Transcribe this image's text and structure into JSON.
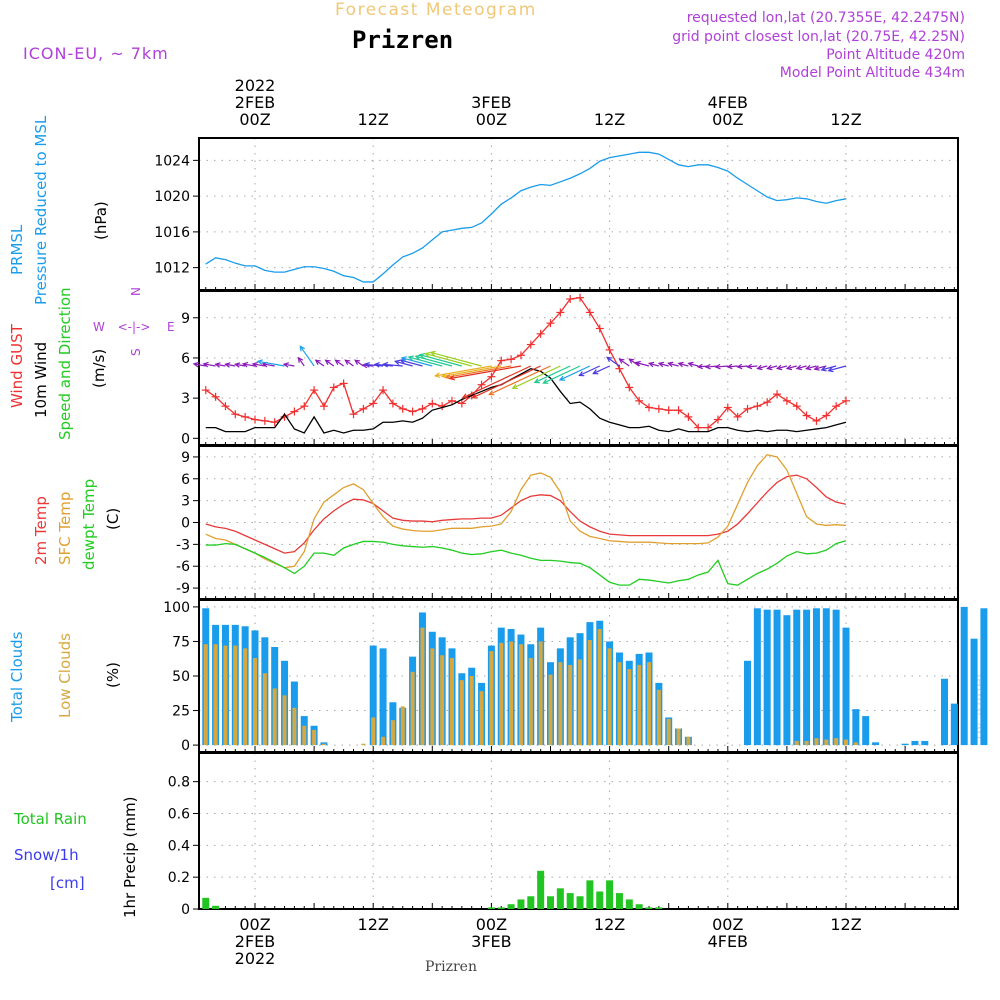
{
  "header": {
    "forecast_title": "Forecast Meteogram",
    "location": "Prizren",
    "model": "ICON-EU, ~ 7km",
    "requested": "requested lon,lat (20.7355E, 42.2475N)",
    "grid_point": "grid point closest lon,lat (20.75E, 42.25N)",
    "point_altitude": "Point Altitude 420m",
    "model_altitude": "Model Point Altitude 434m",
    "footer_location": "Prizren",
    "watermark": "by Angel"
  },
  "colors": {
    "title": "#f0c878",
    "purple": "#b040d8",
    "pressure": "#1a9cec",
    "gust": "#f03030",
    "wind": "#000000",
    "temp2m": "#e83a3a",
    "sfc": "#e0a030",
    "dewpt": "#22cc22",
    "total_clouds": "#1a9cec",
    "low_clouds": "#d8a840",
    "rain": "#22c422",
    "snow": "#3a3af0"
  },
  "time_axis": {
    "top": [
      {
        "h": 0,
        "lines": [
          "2022",
          "2FEB",
          "00Z"
        ]
      },
      {
        "h": 12,
        "lines": [
          "12Z"
        ]
      },
      {
        "h": 24,
        "lines": [
          "3FEB",
          "00Z"
        ]
      },
      {
        "h": 36,
        "lines": [
          "12Z"
        ]
      },
      {
        "h": 48,
        "lines": [
          "4FEB",
          "00Z"
        ]
      },
      {
        "h": 60,
        "lines": [
          "12Z"
        ]
      }
    ],
    "bottom": [
      {
        "h": 0,
        "lines": [
          "00Z",
          "2FEB",
          "2022"
        ]
      },
      {
        "h": 12,
        "lines": [
          "12Z"
        ]
      },
      {
        "h": 24,
        "lines": [
          "00Z",
          "3FEB"
        ]
      },
      {
        "h": 36,
        "lines": [
          "12Z"
        ]
      },
      {
        "h": 48,
        "lines": [
          "00Z",
          "4FEB"
        ]
      },
      {
        "h": 60,
        "lines": [
          "12Z"
        ]
      }
    ]
  },
  "panels": {
    "pressure": {
      "labels": [
        "PRMSL",
        "Pressure Reduced to MSL"
      ],
      "unit": "(hPa)",
      "yticks": [
        "1012",
        "1016",
        "1020",
        "1024"
      ]
    },
    "wind": {
      "labels": [
        "Wind GUST",
        "10m Wind",
        "Speed and Direction"
      ],
      "unit": "(m/s)",
      "compass": {
        "n": "N",
        "s": "S",
        "w": "W",
        "e": "E",
        "arrows": "<-|->"
      },
      "yticks": [
        "0",
        "3",
        "6",
        "9"
      ]
    },
    "temp": {
      "labels": [
        "2m Temp",
        "SFC Temp",
        "dewpt Temp"
      ],
      "unit": "(C)",
      "yticks": [
        "-9",
        "-6",
        "-3",
        "0",
        "3",
        "6",
        "9"
      ]
    },
    "clouds": {
      "labels": [
        "Total Clouds",
        "Low Clouds"
      ],
      "unit": "(%)",
      "yticks": [
        "0",
        "25",
        "50",
        "75",
        "100"
      ]
    },
    "precip": {
      "labels": [
        "Total Rain",
        "Snow/1h",
        "[cm]"
      ],
      "unit": "1hr Precip (mm)",
      "yticks": [
        "0",
        "0.2",
        "0.4",
        "0.6",
        "0.8"
      ]
    }
  },
  "chart_data": [
    {
      "type": "line",
      "title": "PRMSL Pressure Reduced to MSL",
      "ylabel": "hPa",
      "xlabel": "hours from 2FEB 00Z",
      "ylim": [
        1009.5,
        1026.5
      ],
      "x_start": -5,
      "x_step": 1,
      "series": [
        {
          "name": "PRMSL",
          "values": [
            1012.4,
            1013.1,
            1012.9,
            1012.5,
            1012.2,
            1012.2,
            1011.7,
            1011.5,
            1011.5,
            1011.8,
            1012.1,
            1012.1,
            1011.9,
            1011.6,
            1011.1,
            1010.9,
            1010.4,
            1010.4,
            1011.3,
            1012.3,
            1013.2,
            1013.6,
            1014.2,
            1015.1,
            1016.0,
            1016.2,
            1016.4,
            1016.5,
            1017.0,
            1018.0,
            1019.1,
            1019.8,
            1020.6,
            1021.0,
            1021.3,
            1021.2,
            1021.6,
            1022.0,
            1022.5,
            1023.1,
            1023.9,
            1024.3,
            1024.5,
            1024.7,
            1024.9,
            1024.9,
            1024.7,
            1024.1,
            1023.5,
            1023.3,
            1023.5,
            1023.5,
            1023.2,
            1022.8,
            1022.0,
            1021.3,
            1020.6,
            1019.9,
            1019.5,
            1019.6,
            1019.8,
            1019.7,
            1019.4,
            1019.2,
            1019.5,
            1019.7
          ]
        }
      ]
    },
    {
      "type": "line",
      "title": "Wind GUST, 10m Wind Speed and Direction",
      "ylabel": "m/s",
      "xlabel": "hours from 2FEB 00Z",
      "ylim": [
        -0.5,
        11
      ],
      "x_start": -5,
      "x_step": 1,
      "series": [
        {
          "name": "Wind GUST",
          "values": [
            3.6,
            3.1,
            2.4,
            1.8,
            1.6,
            1.4,
            1.3,
            1.2,
            1.6,
            2.0,
            2.4,
            3.6,
            2.4,
            3.8,
            4.1,
            1.8,
            2.2,
            2.6,
            3.6,
            2.6,
            2.2,
            2.0,
            2.2,
            2.6,
            2.4,
            2.8,
            2.6,
            3.2,
            4.0,
            4.6,
            5.8,
            5.9,
            6.2,
            7.0,
            7.8,
            8.6,
            9.4,
            10.4,
            10.5,
            9.4,
            8.2,
            6.6,
            5.2,
            3.8,
            2.8,
            2.3,
            2.2,
            2.1,
            2.1,
            1.6,
            0.8,
            0.8,
            1.4,
            2.3,
            1.6,
            2.2,
            2.4,
            2.7,
            3.3,
            2.8,
            2.4,
            1.7,
            1.3,
            1.7,
            2.4,
            2.8
          ]
        },
        {
          "name": "10m Wind",
          "values": [
            0.8,
            0.8,
            0.5,
            0.5,
            0.5,
            0.8,
            0.8,
            0.8,
            1.8,
            0.7,
            0.4,
            1.6,
            0.4,
            0.6,
            0.4,
            0.6,
            0.6,
            0.7,
            1.2,
            1.2,
            1.3,
            1.2,
            1.5,
            2.1,
            2.3,
            2.5,
            2.9,
            3.2,
            3.5,
            3.8,
            4.0,
            4.4,
            4.8,
            5.2,
            5.0,
            4.5,
            3.5,
            2.6,
            2.7,
            2.2,
            1.5,
            1.2,
            1.0,
            0.8,
            0.8,
            0.9,
            0.6,
            0.5,
            0.7,
            0.5,
            0.5,
            0.5,
            0.8,
            0.8,
            0.6,
            0.5,
            0.6,
            0.5,
            0.6,
            0.6,
            0.5,
            0.6,
            0.7,
            0.8,
            1.0,
            1.2
          ]
        }
      ]
    },
    {
      "type": "line",
      "title": "2m Temp, SFC Temp, dewpt Temp",
      "ylabel": "C",
      "xlabel": "hours from 2FEB 00Z",
      "ylim": [
        -10.5,
        10.5
      ],
      "x_start": -5,
      "x_step": 1,
      "series": [
        {
          "name": "2m Temp",
          "values": [
            -0.2,
            -0.6,
            -0.8,
            -1.2,
            -1.8,
            -2.4,
            -3.0,
            -3.6,
            -4.2,
            -4.0,
            -2.8,
            -1.0,
            0.5,
            1.6,
            2.5,
            3.2,
            3.1,
            2.6,
            1.6,
            0.6,
            0.3,
            0.2,
            0.2,
            0.1,
            0.3,
            0.4,
            0.5,
            0.5,
            0.6,
            0.6,
            1.0,
            2.0,
            3.0,
            3.6,
            3.8,
            3.7,
            3.0,
            1.5,
            0.2,
            -0.6,
            -1.2,
            -1.6,
            -1.7,
            -1.8,
            -1.8,
            -1.8,
            -1.8,
            -1.8,
            -1.8,
            -1.8,
            -1.8,
            -1.8,
            -1.6,
            -1.2,
            -0.2,
            1.2,
            2.7,
            4.2,
            5.5,
            6.3,
            6.5,
            6.0,
            4.8,
            3.5,
            2.8,
            2.5
          ]
        },
        {
          "name": "SFC Temp",
          "values": [
            -1.6,
            -2.2,
            -2.4,
            -3.0,
            -3.6,
            -4.2,
            -5.0,
            -5.6,
            -6.2,
            -6.0,
            -4.0,
            0.5,
            2.8,
            3.8,
            4.8,
            5.3,
            4.5,
            2.6,
            0.8,
            -0.5,
            -0.9,
            -1.1,
            -1.2,
            -1.2,
            -1.0,
            -0.8,
            -0.8,
            -0.8,
            -0.6,
            -0.5,
            -0.2,
            1.5,
            4.5,
            6.5,
            6.8,
            6.2,
            4.2,
            0.2,
            -1.2,
            -1.9,
            -2.2,
            -2.5,
            -2.6,
            -2.7,
            -2.7,
            -2.7,
            -2.8,
            -2.9,
            -2.9,
            -2.9,
            -2.9,
            -2.8,
            -2.0,
            -0.5,
            2.5,
            5.5,
            7.8,
            9.3,
            9.0,
            7.2,
            4.0,
            0.8,
            -0.2,
            -0.4,
            -0.3,
            -0.4
          ]
        },
        {
          "name": "dewpt Temp",
          "values": [
            -3.1,
            -3.1,
            -2.9,
            -3.0,
            -3.6,
            -4.2,
            -4.8,
            -5.5,
            -6.2,
            -7.0,
            -6.0,
            -4.2,
            -4.2,
            -4.5,
            -3.5,
            -3.0,
            -2.6,
            -2.6,
            -2.7,
            -3.0,
            -3.2,
            -3.3,
            -3.4,
            -3.3,
            -3.5,
            -3.8,
            -4.2,
            -4.4,
            -4.3,
            -4.0,
            -3.8,
            -4.2,
            -4.5,
            -4.9,
            -5.2,
            -5.2,
            -5.3,
            -5.5,
            -5.6,
            -6.2,
            -7.2,
            -8.2,
            -8.6,
            -8.6,
            -7.8,
            -7.9,
            -8.1,
            -8.3,
            -8.0,
            -7.8,
            -7.2,
            -6.8,
            -5.2,
            -8.4,
            -8.6,
            -7.8,
            -7.0,
            -6.4,
            -5.6,
            -4.6,
            -4.0,
            -4.3,
            -4.2,
            -3.8,
            -2.9,
            -2.5
          ]
        }
      ]
    },
    {
      "type": "bar",
      "title": "Total Clouds, Low Clouds",
      "ylabel": "%",
      "xlabel": "hours from 2FEB 00Z",
      "ylim": [
        -5,
        105
      ],
      "x_start": -5,
      "x_step": 1,
      "series": [
        {
          "name": "Total Clouds",
          "values": [
            99,
            87,
            87,
            87,
            86,
            83,
            78,
            71,
            61,
            46,
            21,
            14,
            2,
            0,
            0,
            0,
            0,
            72,
            70,
            31,
            27,
            64,
            96,
            82,
            78,
            70,
            52,
            56,
            45,
            72,
            85,
            84,
            80,
            73,
            85,
            60,
            70,
            78,
            81,
            89,
            90,
            75,
            67,
            61,
            66,
            67,
            45,
            20,
            12,
            6,
            0,
            0,
            0,
            0,
            0,
            61,
            99,
            98,
            98,
            94,
            98,
            98,
            99,
            99,
            98,
            85,
            26,
            21,
            2,
            0,
            0,
            1,
            3,
            3,
            0,
            48,
            30,
            100,
            77,
            99
          ]
        },
        {
          "name": "Low Clouds",
          "values": [
            73,
            73,
            72,
            72,
            70,
            63,
            52,
            41,
            36,
            27,
            14,
            11,
            1,
            0,
            0,
            0,
            1,
            20,
            6,
            18,
            28,
            53,
            85,
            70,
            65,
            63,
            47,
            50,
            39,
            68,
            74,
            75,
            73,
            63,
            75,
            51,
            60,
            58,
            62,
            76,
            84,
            70,
            60,
            55,
            58,
            60,
            40,
            19,
            12,
            6,
            0,
            0,
            0,
            0,
            0,
            0,
            0,
            0,
            0,
            0,
            3,
            3,
            5,
            4,
            5,
            4,
            2,
            0,
            0,
            0,
            0,
            0,
            0,
            0,
            0,
            0,
            0,
            0,
            0,
            0
          ]
        }
      ]
    },
    {
      "type": "bar",
      "title": "1hr Precip (mm)",
      "ylabel": "mm",
      "xlabel": "hours from 2FEB 00Z",
      "ylim": [
        0,
        0.98
      ],
      "x_start": -5,
      "x_step": 1,
      "series": [
        {
          "name": "Total Rain",
          "values": [
            0.07,
            0.02,
            0,
            0,
            0,
            0,
            0,
            0,
            0,
            0,
            0,
            0,
            0,
            0,
            0,
            0,
            0,
            0,
            0,
            0,
            0,
            0,
            0,
            0,
            0,
            0,
            0,
            0,
            0,
            0.01,
            0.01,
            0.03,
            0.06,
            0.08,
            0.24,
            0.08,
            0.13,
            0.1,
            0.08,
            0.18,
            0.11,
            0.18,
            0.1,
            0.06,
            0.03,
            0.01,
            0.01
          ]
        },
        {
          "name": "Snow/1h",
          "values": []
        }
      ]
    }
  ]
}
